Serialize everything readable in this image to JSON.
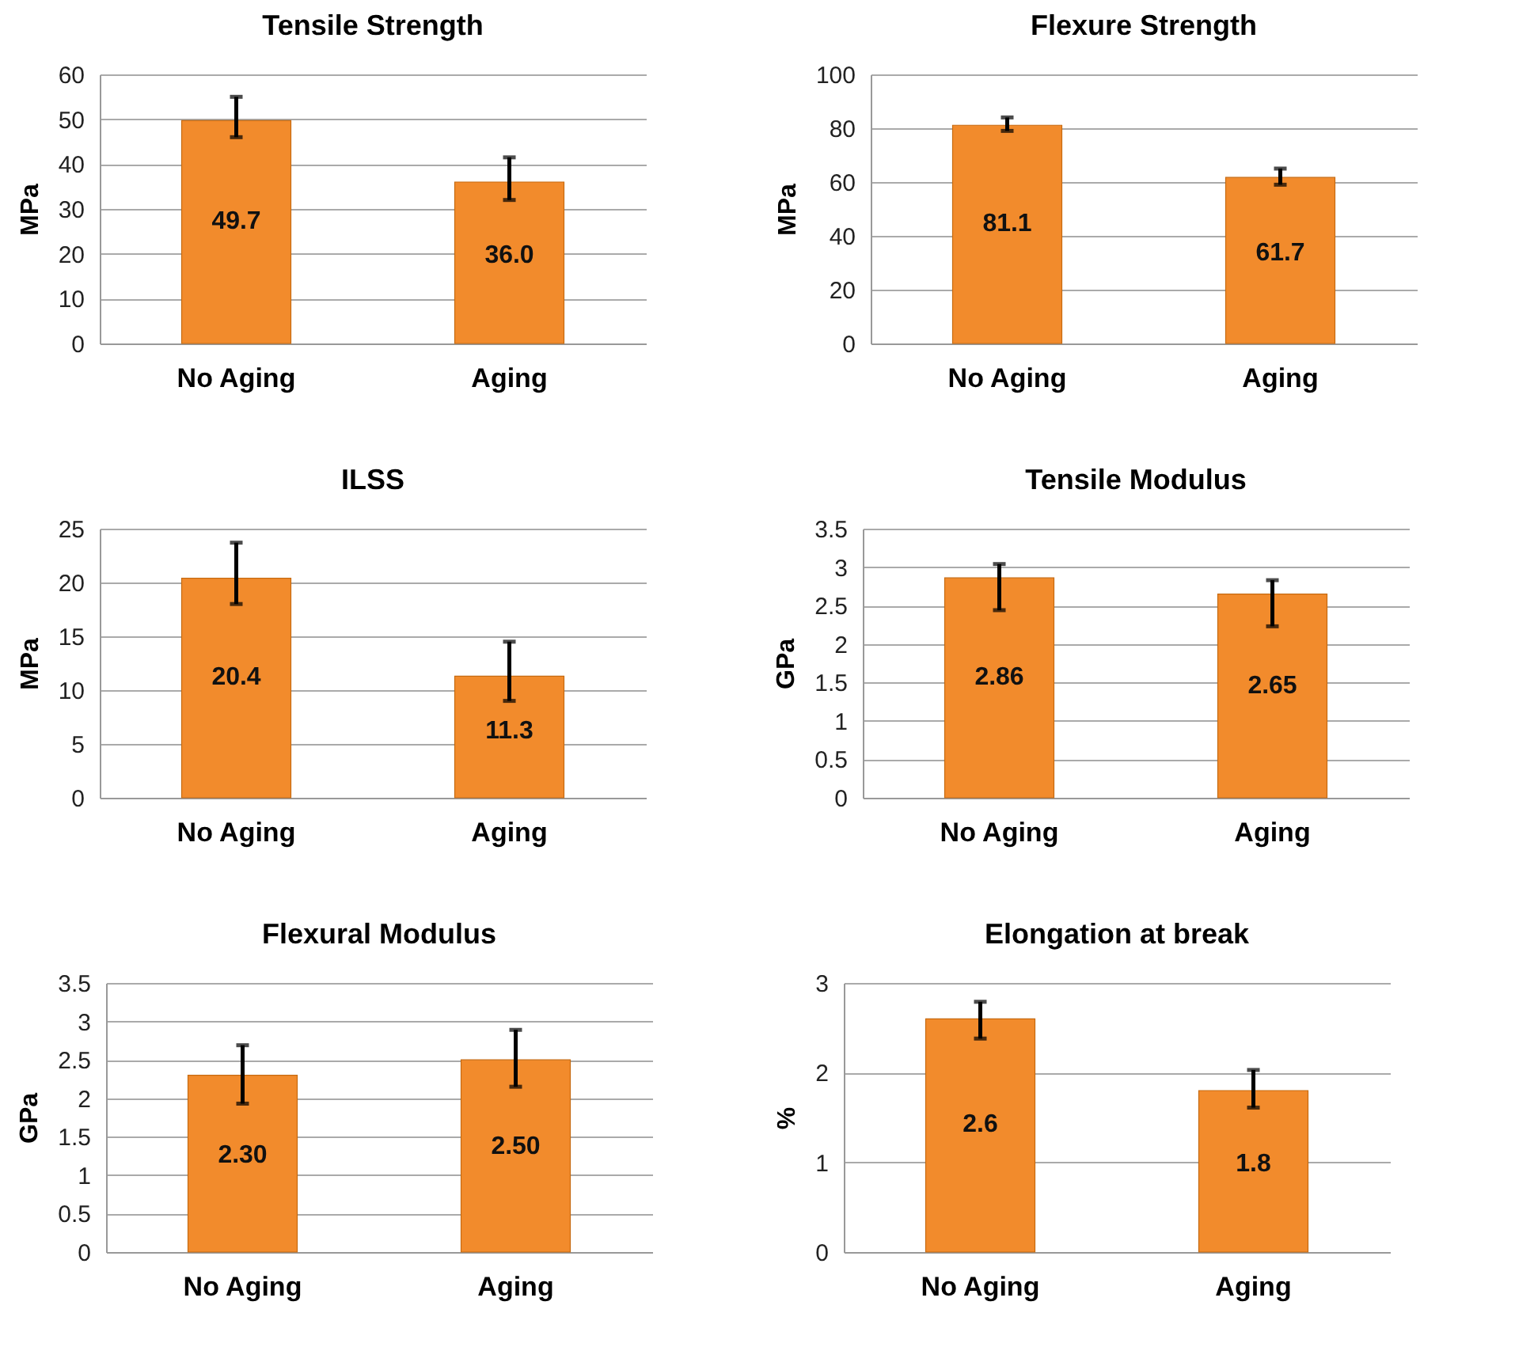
{
  "chart_data": [
    {
      "type": "bar",
      "title": "Tensile Strength",
      "ylabel": "MPa",
      "categories": [
        "No Aging",
        "Aging"
      ],
      "values": [
        49.7,
        36.0
      ],
      "value_labels": [
        "49.7",
        "36.0"
      ],
      "color": "#f28b2c",
      "errors": [
        [
          46,
          55
        ],
        [
          32,
          41.5
        ]
      ],
      "ylim": [
        0,
        60
      ],
      "yticks": [
        0,
        10,
        20,
        30,
        40,
        50,
        60
      ],
      "grid": "y"
    },
    {
      "type": "bar",
      "title": "Flexure Strength",
      "ylabel": "MPa",
      "categories": [
        "No Aging",
        "Aging"
      ],
      "values": [
        81.1,
        61.7
      ],
      "value_labels": [
        "81.1",
        "61.7"
      ],
      "color": "#f28b2c",
      "errors": [
        [
          79,
          84
        ],
        [
          59,
          65
        ]
      ],
      "ylim": [
        0,
        100
      ],
      "yticks": [
        0,
        20,
        40,
        60,
        80,
        100
      ],
      "grid": "y"
    },
    {
      "type": "bar",
      "title": "ILSS",
      "ylabel": "MPa",
      "categories": [
        "No Aging",
        "Aging"
      ],
      "values": [
        20.4,
        11.3
      ],
      "value_labels": [
        "20.4",
        "11.3"
      ],
      "color": "#f28b2c",
      "errors": [
        [
          18,
          23.7
        ],
        [
          9,
          14.5
        ]
      ],
      "ylim": [
        0,
        25
      ],
      "yticks": [
        0,
        5,
        10,
        15,
        20,
        25
      ],
      "grid": "y"
    },
    {
      "type": "bar",
      "title": "Tensile Modulus",
      "ylabel": "GPa",
      "categories": [
        "No Aging",
        "Aging"
      ],
      "values": [
        2.86,
        2.65
      ],
      "value_labels": [
        "2.86",
        "2.65"
      ],
      "color": "#f28b2c",
      "errors": [
        [
          2.44,
          3.04
        ],
        [
          2.23,
          2.83
        ]
      ],
      "ylim": [
        0,
        3.5
      ],
      "yticks": [
        0,
        0.5,
        1,
        1.5,
        2,
        2.5,
        3,
        3.5
      ],
      "grid": "y"
    },
    {
      "type": "bar",
      "title": "Flexural Modulus",
      "ylabel": "GPa",
      "categories": [
        "No Aging",
        "Aging"
      ],
      "values": [
        2.3,
        2.5
      ],
      "value_labels": [
        "2.30",
        "2.50"
      ],
      "color": "#f28b2c",
      "errors": [
        [
          1.93,
          2.69
        ],
        [
          2.15,
          2.89
        ]
      ],
      "ylim": [
        0,
        3.5
      ],
      "yticks": [
        0,
        0.5,
        1,
        1.5,
        2,
        2.5,
        3,
        3.5
      ],
      "grid": "y"
    },
    {
      "type": "bar",
      "title": "Elongation at break",
      "ylabel": "%",
      "categories": [
        "No Aging",
        "Aging"
      ],
      "values": [
        2.6,
        1.8
      ],
      "value_labels": [
        "2.6",
        "1.8"
      ],
      "color": "#f28b2c",
      "errors": [
        [
          2.38,
          2.79
        ],
        [
          1.61,
          2.03
        ]
      ],
      "ylim": [
        0,
        3
      ],
      "yticks": [
        0,
        1,
        2,
        3
      ],
      "grid": "y"
    }
  ]
}
